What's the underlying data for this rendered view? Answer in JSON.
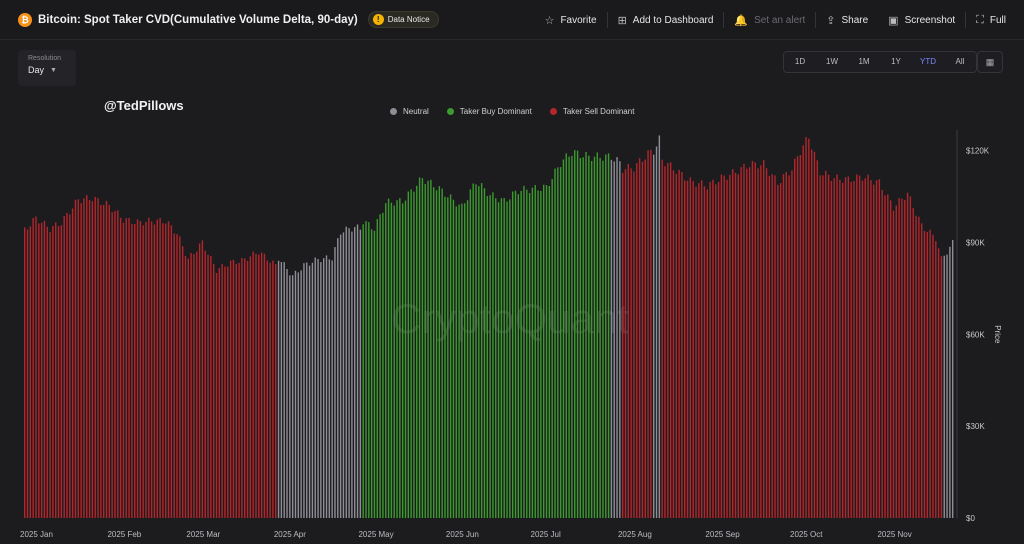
{
  "header": {
    "coin_symbol": "₿",
    "title": "Bitcoin: Spot Taker CVD(Cumulative Volume Delta, 90-day)",
    "notice_label": "Data Notice",
    "notice_icon": "!",
    "actions": [
      {
        "label": "Favorite",
        "icon": "☆",
        "icon_name": "star-icon",
        "disabled": false
      },
      {
        "label": "Add to Dashboard",
        "icon": "⊞",
        "icon_name": "dashboard-add-icon",
        "disabled": false
      },
      {
        "label": "Set an alert",
        "icon": "🔔",
        "icon_name": "bell-icon",
        "disabled": true
      },
      {
        "label": "Share",
        "icon": "⇪",
        "icon_name": "share-icon",
        "disabled": false
      },
      {
        "label": "Screenshot",
        "icon": "▣",
        "icon_name": "screenshot-icon",
        "disabled": false
      },
      {
        "label": "Full",
        "icon": "⛶",
        "icon_name": "fullscreen-icon",
        "disabled": false
      }
    ]
  },
  "resolution": {
    "label": "Resolution",
    "value": "Day",
    "chevron": "▼"
  },
  "ranges": {
    "options": [
      "1D",
      "1W",
      "1M",
      "1Y",
      "YTD",
      "All"
    ],
    "active": "YTD",
    "calendar_icon": "▦"
  },
  "watermark": {
    "user": "@TedPillows",
    "brand": "CryptoQuant"
  },
  "colors": {
    "neutral": "#8e8e96",
    "buy": "#3c9a2e",
    "sell": "#b3262b",
    "accent": "#7b86ff",
    "background": "#1c1c1f"
  },
  "chart_data": {
    "type": "bar",
    "legend": [
      {
        "name": "Neutral",
        "color": "#8e8e96"
      },
      {
        "name": "Taker Buy Dominant",
        "color": "#3c9a2e"
      },
      {
        "name": "Taker Sell Dominant",
        "color": "#b3262b"
      }
    ],
    "legend_placement": "top-center",
    "ylabel": "Price",
    "ylim": [
      0,
      130000
    ],
    "y_ticks": [
      0,
      30000,
      60000,
      90000,
      120000
    ],
    "y_tick_labels": [
      "$0",
      "$30K",
      "$60K",
      "$90K",
      "$120K"
    ],
    "x_tick_labels": [
      "2025 Jan",
      "2025 Feb",
      "2025 Mar",
      "2025 Apr",
      "2025 May",
      "2025 Jun",
      "2025 Jul",
      "2025 Aug",
      "2025 Sep",
      "2025 Oct",
      "2025 Nov"
    ],
    "x_tick_dates": [
      "2025-01-01",
      "2025-02-01",
      "2025-03-01",
      "2025-04-01",
      "2025-05-01",
      "2025-06-01",
      "2025-07-01",
      "2025-08-01",
      "2025-09-01",
      "2025-10-01",
      "2025-11-01"
    ],
    "xlim": [
      "2025-01-01",
      "2025-11-26"
    ],
    "grid": false,
    "series": [
      {
        "name": "Taker Sell Dominant",
        "color": "#b3262b",
        "points": [
          [
            "2025-01-01",
            94000
          ],
          [
            "2025-01-05",
            98000
          ],
          [
            "2025-01-10",
            94500
          ],
          [
            "2025-01-14",
            96500
          ],
          [
            "2025-01-20",
            104000
          ],
          [
            "2025-01-25",
            104500
          ],
          [
            "2025-01-31",
            102000
          ],
          [
            "2025-02-05",
            97500
          ],
          [
            "2025-02-10",
            96500
          ],
          [
            "2025-02-15",
            97000
          ],
          [
            "2025-02-20",
            97000
          ],
          [
            "2025-02-24",
            93000
          ],
          [
            "2025-02-28",
            84500
          ],
          [
            "2025-03-05",
            90000
          ],
          [
            "2025-03-10",
            81000
          ],
          [
            "2025-03-15",
            83500
          ],
          [
            "2025-03-19",
            84000
          ],
          [
            "2025-03-25",
            87000
          ],
          [
            "2025-03-31",
            82500
          ],
          [
            "2025-08-01",
            114000
          ],
          [
            "2025-08-05",
            114500
          ],
          [
            "2025-08-10",
            119000
          ],
          [
            "2025-08-15",
            117000
          ],
          [
            "2025-08-20",
            113500
          ],
          [
            "2025-08-25",
            110000
          ],
          [
            "2025-08-31",
            108500
          ],
          [
            "2025-09-05",
            111000
          ],
          [
            "2025-09-10",
            113000
          ],
          [
            "2025-09-15",
            115500
          ],
          [
            "2025-09-20",
            115500
          ],
          [
            "2025-09-25",
            109500
          ],
          [
            "2025-09-30",
            114000
          ],
          [
            "2025-10-03",
            120000
          ],
          [
            "2025-10-06",
            124500
          ],
          [
            "2025-10-10",
            113000
          ],
          [
            "2025-10-15",
            111000
          ],
          [
            "2025-10-20",
            110500
          ],
          [
            "2025-10-25",
            111500
          ],
          [
            "2025-10-31",
            109500
          ],
          [
            "2025-11-05",
            101500
          ],
          [
            "2025-11-10",
            106000
          ],
          [
            "2025-11-15",
            95500
          ],
          [
            "2025-11-20",
            91500
          ],
          [
            "2025-11-22",
            84500
          ]
        ]
      },
      {
        "name": "Neutral",
        "color": "#8e8e96",
        "points": [
          [
            "2025-04-01",
            85000
          ],
          [
            "2025-04-06",
            79000
          ],
          [
            "2025-04-10",
            82500
          ],
          [
            "2025-04-15",
            84500
          ],
          [
            "2025-04-20",
            85000
          ],
          [
            "2025-04-23",
            93500
          ],
          [
            "2025-04-28",
            95000
          ],
          [
            "2025-04-30",
            94500
          ],
          [
            "2025-07-28",
            118000
          ],
          [
            "2025-07-31",
            116000
          ],
          [
            "2025-08-12",
            120000
          ],
          [
            "2025-08-14",
            123500
          ],
          [
            "2025-11-23",
            86000
          ],
          [
            "2025-11-25",
            88000
          ],
          [
            "2025-11-26",
            90000
          ]
        ]
      },
      {
        "name": "Taker Buy Dominant",
        "color": "#3c9a2e",
        "points": [
          [
            "2025-05-01",
            97000
          ],
          [
            "2025-05-05",
            94500
          ],
          [
            "2025-05-09",
            103000
          ],
          [
            "2025-05-15",
            103500
          ],
          [
            "2025-05-22",
            111000
          ],
          [
            "2025-05-28",
            107500
          ],
          [
            "2025-06-01",
            104500
          ],
          [
            "2025-06-05",
            101500
          ],
          [
            "2025-06-10",
            110000
          ],
          [
            "2025-06-15",
            105500
          ],
          [
            "2025-06-20",
            103500
          ],
          [
            "2025-06-25",
            107000
          ],
          [
            "2025-06-30",
            107500
          ],
          [
            "2025-07-05",
            108000
          ],
          [
            "2025-07-10",
            116000
          ],
          [
            "2025-07-14",
            119500
          ],
          [
            "2025-07-20",
            118000
          ],
          [
            "2025-07-26",
            118000
          ]
        ]
      }
    ]
  }
}
